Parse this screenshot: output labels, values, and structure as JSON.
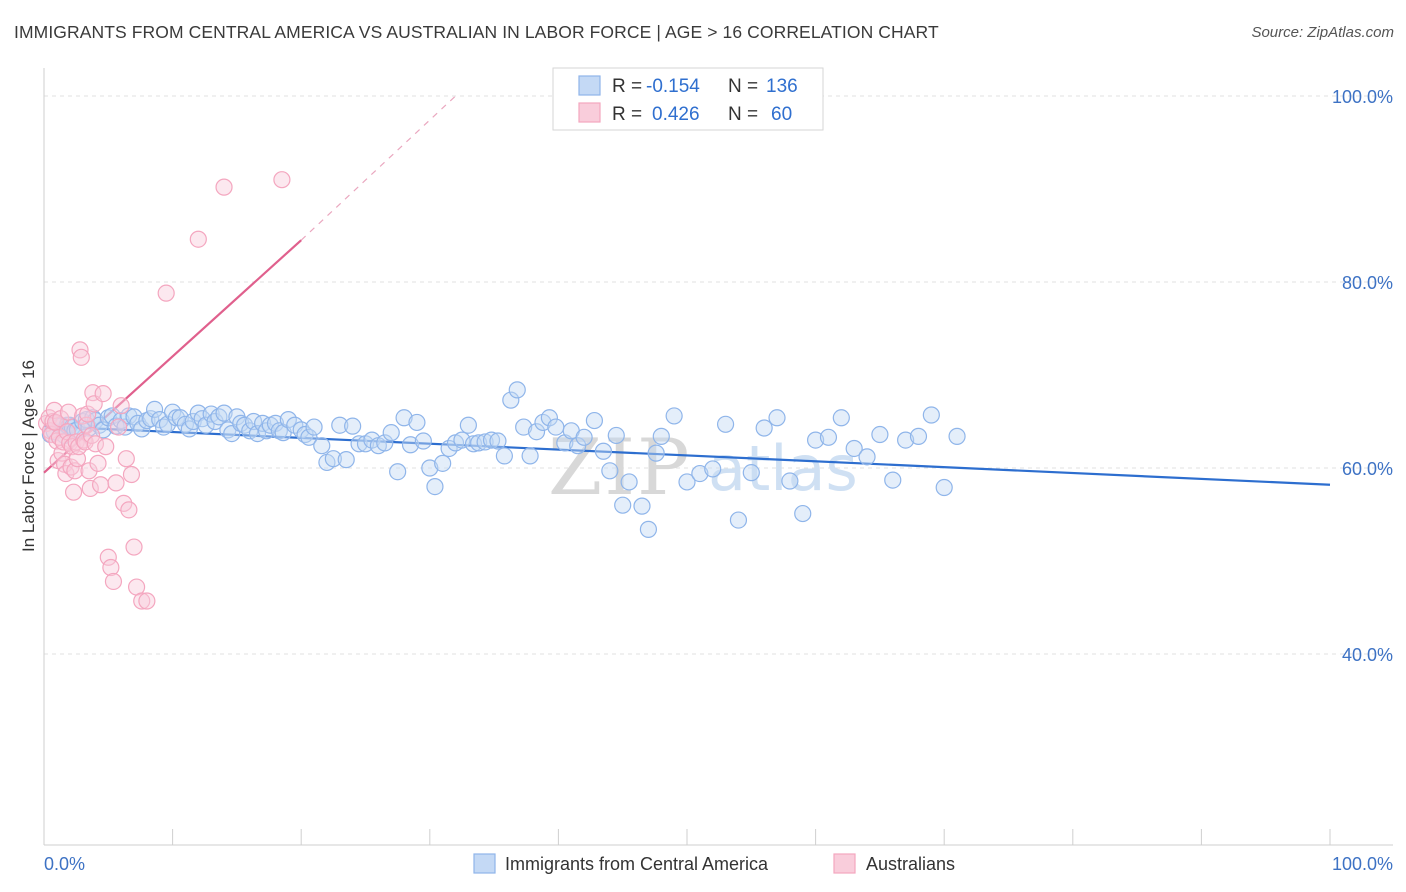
{
  "title": "IMMIGRANTS FROM CENTRAL AMERICA VS AUSTRALIAN IN LABOR FORCE | AGE > 16 CORRELATION CHART",
  "source": "Source: ZipAtlas.com",
  "watermark": {
    "zip": "ZIP",
    "atlas": "atlas"
  },
  "legend": {
    "rows": [
      {
        "r_label": "R =",
        "r_value": "-0.154",
        "n_label": "N =",
        "n_value": "136",
        "color": "#8fb5ea"
      },
      {
        "r_label": "R =",
        "r_value": "0.426",
        "n_label": "N =",
        "n_value": "60",
        "color": "#f4a6bf"
      }
    ]
  },
  "chart_data": {
    "type": "scatter",
    "ylabel": "In Labor Force | Age > 16",
    "xlabel": "",
    "xlim": [
      0,
      100
    ],
    "ylim": [
      20,
      100
    ],
    "x_tick_labels": [
      "0.0%",
      "100.0%"
    ],
    "y_ticks": [
      40,
      60,
      80,
      100
    ],
    "y_tick_labels": [
      "40.0%",
      "60.0%",
      "80.0%",
      "100.0%"
    ],
    "grid": true,
    "legend_position": "top-center",
    "series": [
      {
        "name": "Immigrants from Central America",
        "color": "#8fb5ea",
        "line_color": "#2d6ecf",
        "trend": {
          "x0": 0,
          "y0": 64.5,
          "x1": 100,
          "y1": 58.2
        },
        "points": [
          [
            0.5,
            63.6
          ],
          [
            0.8,
            63.9
          ],
          [
            1.0,
            64.8
          ],
          [
            1.3,
            64.5
          ],
          [
            1.6,
            63.5
          ],
          [
            1.8,
            64.6
          ],
          [
            2.0,
            64.6
          ],
          [
            2.2,
            64.4
          ],
          [
            2.4,
            64.0
          ],
          [
            2.6,
            64.1
          ],
          [
            3.0,
            65.0
          ],
          [
            3.3,
            65.2
          ],
          [
            3.5,
            64.3
          ],
          [
            3.8,
            65.4
          ],
          [
            4.0,
            65.1
          ],
          [
            4.3,
            64.6
          ],
          [
            4.6,
            64.1
          ],
          [
            5.0,
            65.4
          ],
          [
            5.3,
            65.6
          ],
          [
            5.6,
            64.5
          ],
          [
            6.0,
            65.1
          ],
          [
            6.3,
            64.4
          ],
          [
            6.6,
            65.6
          ],
          [
            7.0,
            65.5
          ],
          [
            7.3,
            64.8
          ],
          [
            7.6,
            64.2
          ],
          [
            8.0,
            65.1
          ],
          [
            8.3,
            65.3
          ],
          [
            8.6,
            66.3
          ],
          [
            9.0,
            65.2
          ],
          [
            9.3,
            64.4
          ],
          [
            9.6,
            64.7
          ],
          [
            10.0,
            66.0
          ],
          [
            10.3,
            65.4
          ],
          [
            10.6,
            65.4
          ],
          [
            11.0,
            64.7
          ],
          [
            11.3,
            64.2
          ],
          [
            11.6,
            65.0
          ],
          [
            12.0,
            65.9
          ],
          [
            12.3,
            65.3
          ],
          [
            12.6,
            64.6
          ],
          [
            13.0,
            65.8
          ],
          [
            13.3,
            65.0
          ],
          [
            13.6,
            65.5
          ],
          [
            14.0,
            65.9
          ],
          [
            14.3,
            64.1
          ],
          [
            14.6,
            63.7
          ],
          [
            15.0,
            65.5
          ],
          [
            15.3,
            64.8
          ],
          [
            15.6,
            64.6
          ],
          [
            16.0,
            64.0
          ],
          [
            16.3,
            65.0
          ],
          [
            16.6,
            63.7
          ],
          [
            17.0,
            64.8
          ],
          [
            17.3,
            64.0
          ],
          [
            17.6,
            64.6
          ],
          [
            18.0,
            64.8
          ],
          [
            18.3,
            64.0
          ],
          [
            18.6,
            63.8
          ],
          [
            19.0,
            65.2
          ],
          [
            19.5,
            64.6
          ],
          [
            20.0,
            64.1
          ],
          [
            20.3,
            63.6
          ],
          [
            20.6,
            63.3
          ],
          [
            21.0,
            64.4
          ],
          [
            21.6,
            62.4
          ],
          [
            22.0,
            60.6
          ],
          [
            22.5,
            61.0
          ],
          [
            23.0,
            64.6
          ],
          [
            23.5,
            60.9
          ],
          [
            24.0,
            64.5
          ],
          [
            24.5,
            62.6
          ],
          [
            25.0,
            62.6
          ],
          [
            25.5,
            63.0
          ],
          [
            26.0,
            62.4
          ],
          [
            26.5,
            62.7
          ],
          [
            27.0,
            63.8
          ],
          [
            27.5,
            59.6
          ],
          [
            28.0,
            65.4
          ],
          [
            28.5,
            62.5
          ],
          [
            29.0,
            64.9
          ],
          [
            29.5,
            62.9
          ],
          [
            30.0,
            60.0
          ],
          [
            30.4,
            58.0
          ],
          [
            31.0,
            60.5
          ],
          [
            31.5,
            62.1
          ],
          [
            32.0,
            62.7
          ],
          [
            32.5,
            63.0
          ],
          [
            33.0,
            64.6
          ],
          [
            33.4,
            62.6
          ],
          [
            33.8,
            62.7
          ],
          [
            34.3,
            62.8
          ],
          [
            34.8,
            63.0
          ],
          [
            35.3,
            62.9
          ],
          [
            35.8,
            61.3
          ],
          [
            36.3,
            67.3
          ],
          [
            36.8,
            68.4
          ],
          [
            37.3,
            64.4
          ],
          [
            37.8,
            61.3
          ],
          [
            38.3,
            63.9
          ],
          [
            38.8,
            64.9
          ],
          [
            39.3,
            65.4
          ],
          [
            39.8,
            64.4
          ],
          [
            40.5,
            62.7
          ],
          [
            41.0,
            64.0
          ],
          [
            41.5,
            62.4
          ],
          [
            42.0,
            63.3
          ],
          [
            42.8,
            65.1
          ],
          [
            43.5,
            61.8
          ],
          [
            44.0,
            59.7
          ],
          [
            44.5,
            63.5
          ],
          [
            45.0,
            56.0
          ],
          [
            45.5,
            58.5
          ],
          [
            46.5,
            55.9
          ],
          [
            47.0,
            53.4
          ],
          [
            47.6,
            61.6
          ],
          [
            48.0,
            63.4
          ],
          [
            49.0,
            65.6
          ],
          [
            50.0,
            58.5
          ],
          [
            51.0,
            59.4
          ],
          [
            52.0,
            59.9
          ],
          [
            53.0,
            64.7
          ],
          [
            54.0,
            54.4
          ],
          [
            55.0,
            59.5
          ],
          [
            56.0,
            64.3
          ],
          [
            57.0,
            65.4
          ],
          [
            58.0,
            58.6
          ],
          [
            59.0,
            55.1
          ],
          [
            60.0,
            63.0
          ],
          [
            61.0,
            63.3
          ],
          [
            62.0,
            65.4
          ],
          [
            63.0,
            62.1
          ],
          [
            64.0,
            61.2
          ],
          [
            65.0,
            63.6
          ],
          [
            66.0,
            58.7
          ],
          [
            67.0,
            63.0
          ],
          [
            68.0,
            63.4
          ],
          [
            69.0,
            65.7
          ],
          [
            70.0,
            57.9
          ],
          [
            71.0,
            63.4
          ]
        ]
      },
      {
        "name": "Australians",
        "color": "#f4a6bf",
        "line_color": "#e0608d",
        "trend": {
          "x0": 0,
          "y0": 59.5,
          "x1": 20,
          "y1": 84.5,
          "dash_to_x": 32,
          "dash_to_y": 100
        },
        "points": [
          [
            0.2,
            64.8
          ],
          [
            0.4,
            65.4
          ],
          [
            0.5,
            64.0
          ],
          [
            0.6,
            63.6
          ],
          [
            0.7,
            65.0
          ],
          [
            0.8,
            66.2
          ],
          [
            0.9,
            64.9
          ],
          [
            1.0,
            62.9
          ],
          [
            1.1,
            60.8
          ],
          [
            1.2,
            63.3
          ],
          [
            1.3,
            65.3
          ],
          [
            1.4,
            61.6
          ],
          [
            1.5,
            62.8
          ],
          [
            1.6,
            60.4
          ],
          [
            1.7,
            59.4
          ],
          [
            1.8,
            63.9
          ],
          [
            1.9,
            66.0
          ],
          [
            2.0,
            62.7
          ],
          [
            2.1,
            60.1
          ],
          [
            2.2,
            62.3
          ],
          [
            2.3,
            57.4
          ],
          [
            2.4,
            59.7
          ],
          [
            2.5,
            62.8
          ],
          [
            2.6,
            61.0
          ],
          [
            2.7,
            62.3
          ],
          [
            2.8,
            72.7
          ],
          [
            2.9,
            71.9
          ],
          [
            3.0,
            65.6
          ],
          [
            3.1,
            63.0
          ],
          [
            3.2,
            62.8
          ],
          [
            3.3,
            64.6
          ],
          [
            3.4,
            65.8
          ],
          [
            3.5,
            59.7
          ],
          [
            3.6,
            57.8
          ],
          [
            3.7,
            63.5
          ],
          [
            3.8,
            68.1
          ],
          [
            3.9,
            66.9
          ],
          [
            4.0,
            62.6
          ],
          [
            4.2,
            60.5
          ],
          [
            4.4,
            58.2
          ],
          [
            4.6,
            68.0
          ],
          [
            4.8,
            62.3
          ],
          [
            5.0,
            50.4
          ],
          [
            5.2,
            49.3
          ],
          [
            5.4,
            47.8
          ],
          [
            5.6,
            58.4
          ],
          [
            5.8,
            64.4
          ],
          [
            6.0,
            66.7
          ],
          [
            6.2,
            56.2
          ],
          [
            6.4,
            61.0
          ],
          [
            6.6,
            55.5
          ],
          [
            6.8,
            59.3
          ],
          [
            7.0,
            51.5
          ],
          [
            7.2,
            47.2
          ],
          [
            7.6,
            45.7
          ],
          [
            8.0,
            45.7
          ],
          [
            9.5,
            78.8
          ],
          [
            12.0,
            84.6
          ],
          [
            14.0,
            90.2
          ],
          [
            18.5,
            91.0
          ]
        ]
      }
    ]
  }
}
